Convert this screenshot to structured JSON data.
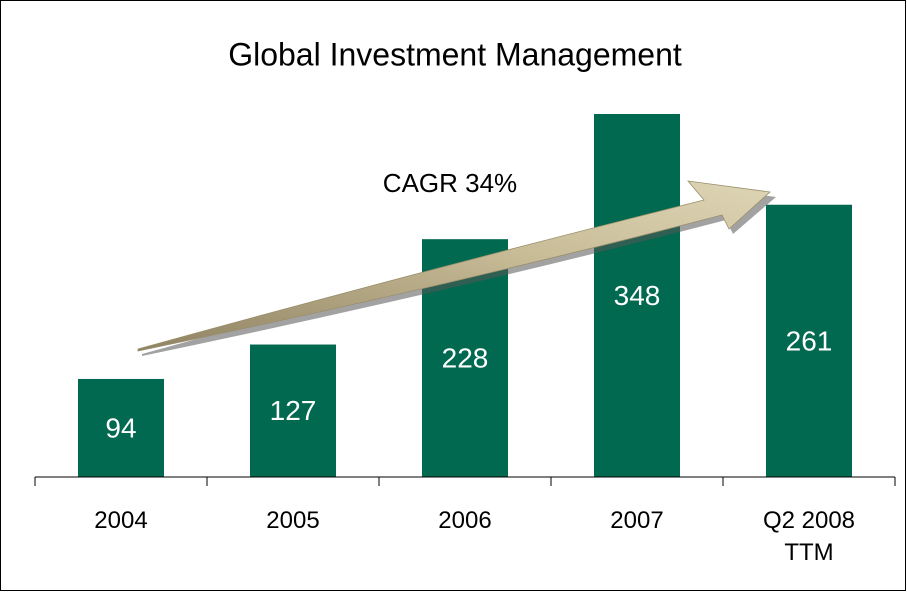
{
  "chart_data": {
    "type": "bar",
    "title": "Global Investment Management",
    "annotation": "CAGR 34%",
    "categories": [
      "2004",
      "2005",
      "2006",
      "2007",
      "Q2 2008\nTTM"
    ],
    "values": [
      94,
      127,
      228,
      348,
      261
    ],
    "color": "#00694f"
  }
}
